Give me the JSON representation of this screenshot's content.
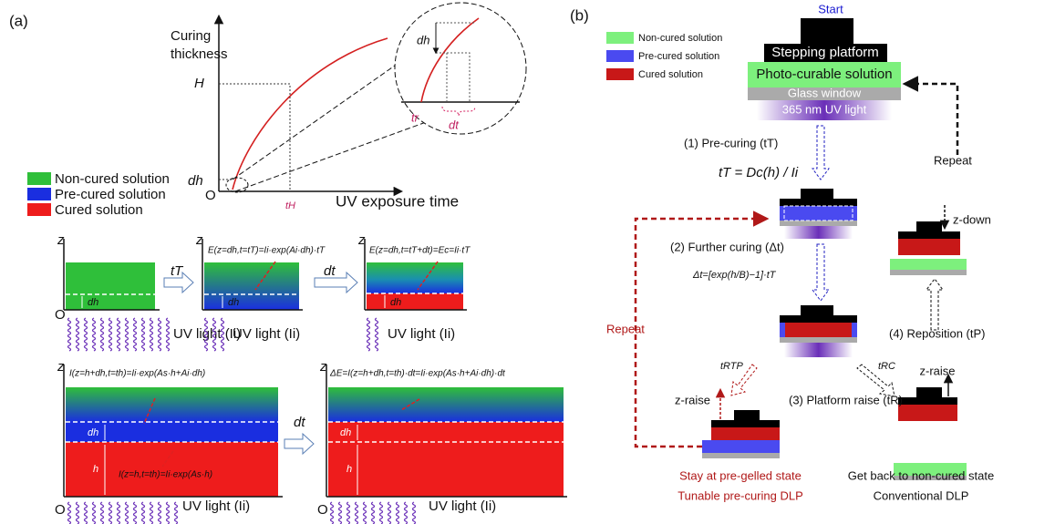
{
  "panel_a": {
    "label": "(a)",
    "graph": {
      "y_label": [
        "Curing",
        "thickness"
      ],
      "H": "H",
      "dh": "dh",
      "origin": "O",
      "x_label": "UV exposure time",
      "t_H": "tH",
      "inset_dh": "dh",
      "t_r": "tr",
      "inset_dt": "dt"
    },
    "legend": [
      "Non-cured solution",
      "Pre-cured solution",
      "Cured solution"
    ],
    "row1": {
      "boxes": [
        {
          "z": "z",
          "origin": "O",
          "dh": "dh",
          "uv": "UV light (Ii)"
        },
        {
          "z": "z",
          "dh": "dh",
          "uv": "UV light (Ii)",
          "eq": "E(z=dh,t=tT)=Ii·exp(Ai·dh)·tT"
        },
        {
          "z": "z",
          "dh": "dh",
          "uv": "UV light (Ii)",
          "eq": "E(z=dh,t=tT+dt)=Ec=Ii·tT"
        }
      ],
      "step1": "tT",
      "step2": "dt"
    },
    "row2": {
      "boxes": [
        {
          "z": "z",
          "origin": "O",
          "dh": "dh",
          "h": "h",
          "uv": "UV light (Ii)",
          "eq_top": "I(z=h+dh,t=th)=Ii·exp(As·h+Ai·dh)",
          "eq_bottom": "I(z=h,t=th)=Ii·exp(As·h)"
        },
        {
          "z": "z",
          "origin": "O",
          "dh": "dh",
          "h": "h",
          "uv": "UV light (Ii)",
          "eq_top": "ΔE=I(z=h+dh,t=th)·dt=Ii·exp(As·h+Ai·dh)·dt"
        }
      ],
      "step": "dt"
    }
  },
  "panel_b": {
    "label": "(b)",
    "start": "Start",
    "legend": [
      "Non-cured solution",
      "Pre-cured solution",
      "Cured solution"
    ],
    "setup": {
      "platform": "Stepping platform",
      "solution": "Photo-curable solution",
      "window": "Glass window",
      "light": "365 nm UV light"
    },
    "steps": {
      "pre_curing": "(1) Pre-curing (tT)",
      "pre_curing_eq": "tT = Dc(h) / Ii",
      "further_curing": "(2) Further curing (Δt)",
      "further_curing_eq": "Δt=[exp(h/B)−1]·tT",
      "platform_raise": "(3) Platform raise (tR)",
      "reposition": "(4) Reposition (tP)",
      "t_tp": "tRTP",
      "t_c": "tRC"
    },
    "moves": {
      "z_down": "z-down",
      "z_raise_right": "z-raise",
      "z_raise_left": "z-raise",
      "repeat_right": "Repeat",
      "repeat_left": "Repeat"
    },
    "outcomes": {
      "left": [
        "Stay at pre-gelled state",
        "Tunable pre-curing DLP"
      ],
      "right": [
        "Get back to non-cured state",
        "Conventional DLP"
      ]
    }
  }
}
